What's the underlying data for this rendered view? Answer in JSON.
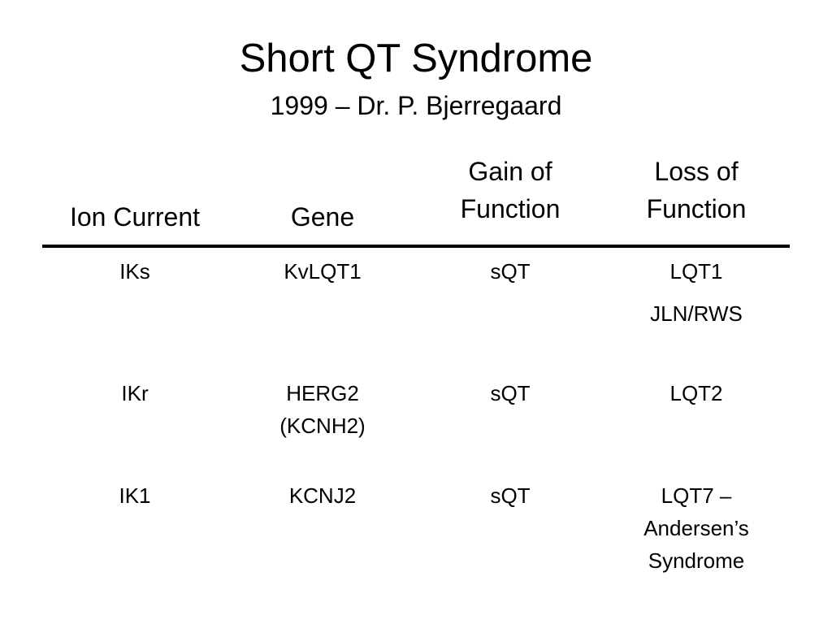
{
  "slide": {
    "title": "Short QT Syndrome",
    "subtitle": "1999 – Dr. P. Bjerregaard"
  },
  "table": {
    "headers": [
      "Ion Current",
      "Gene",
      "Gain of\nFunction",
      "Loss of\nFunction"
    ],
    "rows": [
      [
        "IKs",
        "KvLQT1",
        "sQT",
        "LQT1\nJLN/RWS"
      ],
      [
        "IKr",
        "HERG2\n(KCNH2)",
        "sQT",
        "LQT2"
      ],
      [
        "IK1",
        "KCNJ2",
        "sQT",
        "LQT7 –\nAndersen’s\nSyndrome"
      ]
    ]
  }
}
